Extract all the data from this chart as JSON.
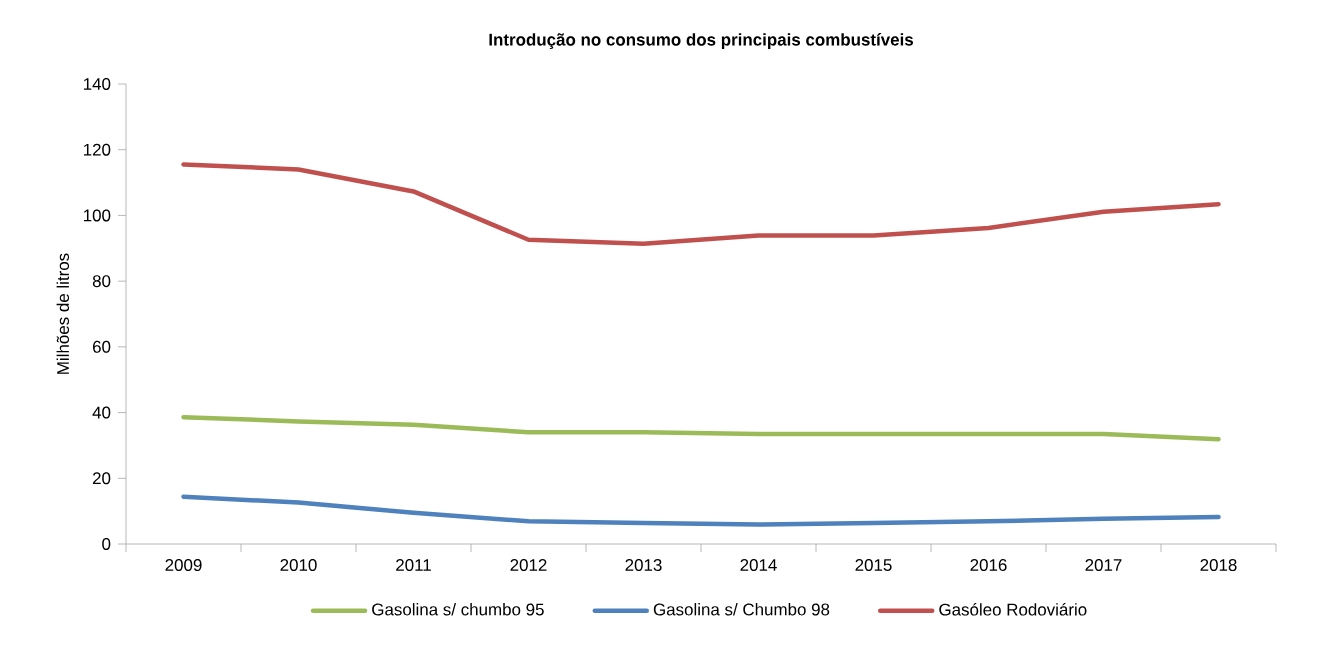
{
  "chart_data": {
    "type": "line",
    "title": "Introdução no consumo dos principais combustíveis",
    "ylabel": "Milhões de litros",
    "categories": [
      "2009",
      "2010",
      "2011",
      "2012",
      "2013",
      "2014",
      "2015",
      "2016",
      "2017",
      "2018"
    ],
    "series": [
      {
        "name": "Gasolina s/ chumbo 95",
        "color": "#9bbb59",
        "values": [
          38.6,
          37.3,
          36.3,
          34.0,
          34.0,
          33.5,
          33.5,
          33.5,
          33.5,
          31.9
        ]
      },
      {
        "name": "Gasolina s/ Chumbo 98",
        "color": "#4f81bd",
        "values": [
          14.4,
          12.6,
          9.5,
          6.9,
          6.4,
          5.9,
          6.4,
          6.9,
          7.7,
          8.2
        ]
      },
      {
        "name": "Gasóleo  Rodoviário",
        "color": "#c0504d",
        "values": [
          115.5,
          114.0,
          107.3,
          92.6,
          91.4,
          93.9,
          93.9,
          96.2,
          101.1,
          103.4
        ]
      }
    ],
    "ylim": [
      0,
      140
    ],
    "yticks": [
      0,
      20,
      40,
      60,
      80,
      100,
      120,
      140
    ],
    "legend": "bottom",
    "marker": "none",
    "line_style": "solid"
  }
}
